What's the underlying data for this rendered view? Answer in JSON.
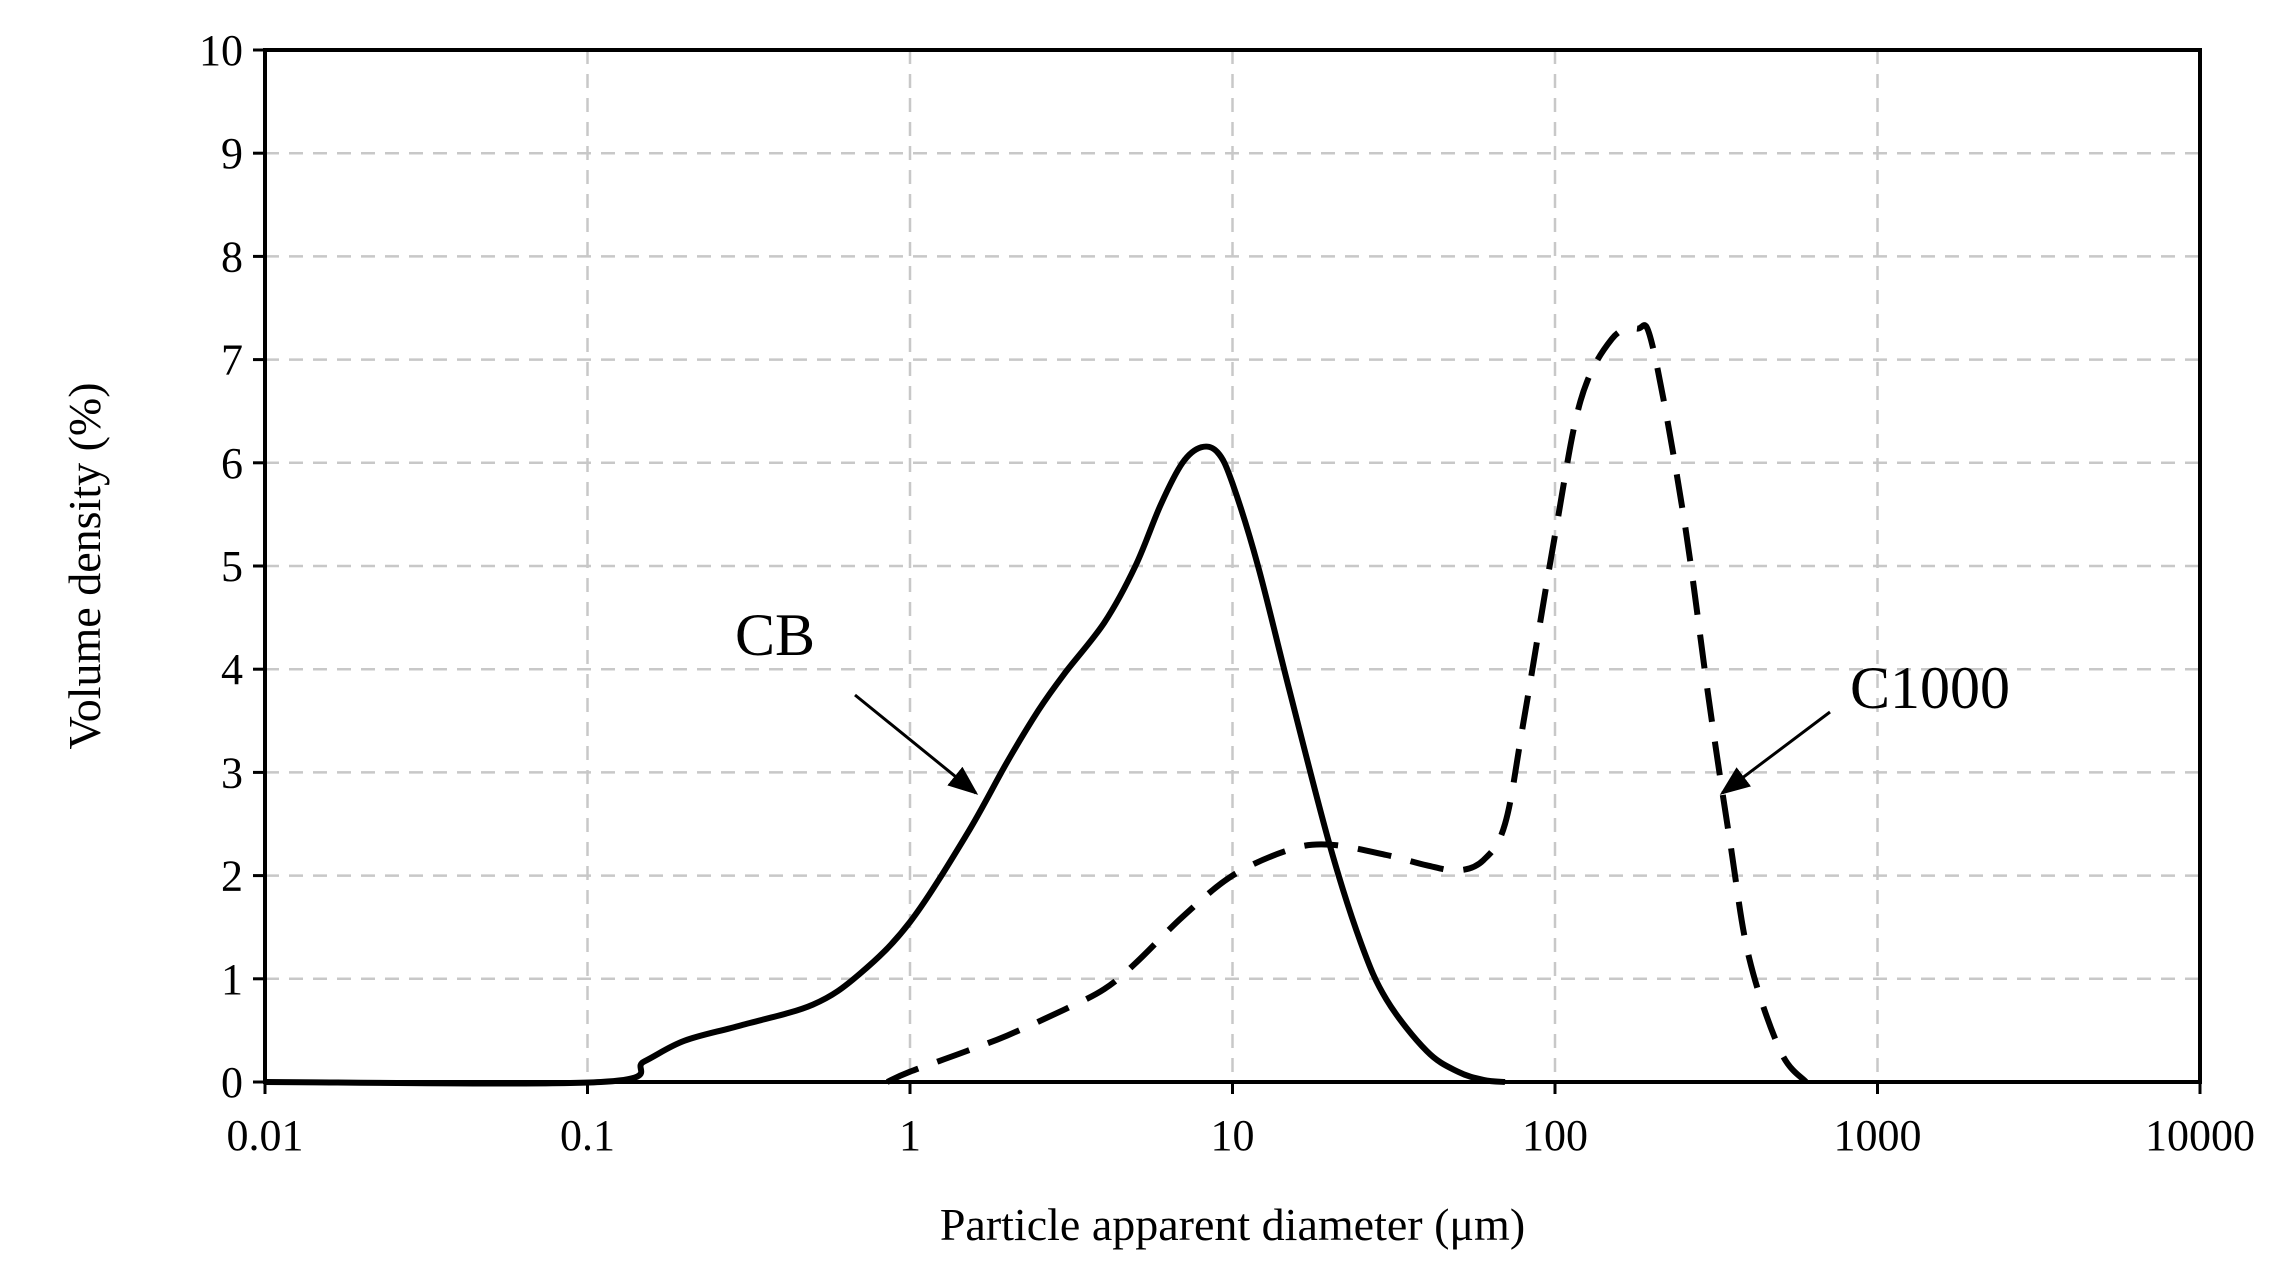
{
  "chart_data": {
    "type": "line",
    "xlabel": "Particle apparent diameter (μm)",
    "ylabel": "Volume density (%)",
    "x_scale": "log",
    "xlim": [
      0.01,
      10000
    ],
    "ylim": [
      0,
      10
    ],
    "grid": true,
    "x_ticks": [
      "0.01",
      "0.1",
      "1",
      "10",
      "100",
      "1000",
      "10000"
    ],
    "y_ticks": [
      "0",
      "1",
      "2",
      "3",
      "4",
      "5",
      "6",
      "7",
      "8",
      "9",
      "10"
    ],
    "series": [
      {
        "name": "CB",
        "style": "solid",
        "color": "#000000",
        "x": [
          0.01,
          0.11,
          0.15,
          0.2,
          0.3,
          0.5,
          0.7,
          1.0,
          1.5,
          2.0,
          2.5,
          3.0,
          4.0,
          5.0,
          6.0,
          7.0,
          8.0,
          9.0,
          10.0,
          12.0,
          15.0,
          20.0,
          25.0,
          30.0,
          40.0,
          50.0,
          60.0,
          70.0
        ],
        "y": [
          0,
          0,
          0.2,
          0.4,
          0.55,
          0.75,
          1.05,
          1.55,
          2.4,
          3.1,
          3.6,
          3.95,
          4.45,
          5.0,
          5.6,
          6.0,
          6.15,
          6.1,
          5.8,
          5.0,
          3.8,
          2.3,
          1.35,
          0.8,
          0.3,
          0.1,
          0.02,
          0
        ]
      },
      {
        "name": "C1000",
        "style": "dashed",
        "color": "#000000",
        "x": [
          0.85,
          1.0,
          1.5,
          2.0,
          3.0,
          4.0,
          5.0,
          7.0,
          10.0,
          15.0,
          20.0,
          30.0,
          40.0,
          50.0,
          60.0,
          70.0,
          80.0,
          100.0,
          120.0,
          150.0,
          180.0,
          200.0,
          250.0,
          300.0,
          350.0,
          400.0,
          500.0,
          600.0
        ],
        "y": [
          0,
          0.1,
          0.3,
          0.45,
          0.7,
          0.9,
          1.15,
          1.6,
          2.0,
          2.25,
          2.3,
          2.2,
          2.1,
          2.05,
          2.15,
          2.5,
          3.5,
          5.3,
          6.6,
          7.2,
          7.3,
          7.15,
          5.5,
          3.7,
          2.3,
          1.2,
          0.3,
          0
        ]
      }
    ],
    "annotations": [
      {
        "text": "CB",
        "arrow_to": {
          "x": 1.6,
          "y": 2.8
        }
      },
      {
        "text": "C1000",
        "arrow_to": {
          "x": 330,
          "y": 2.8
        }
      }
    ]
  }
}
